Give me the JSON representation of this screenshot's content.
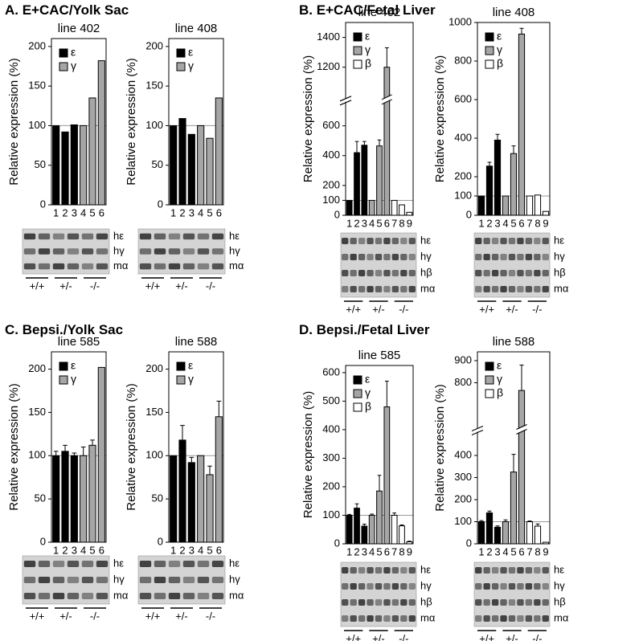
{
  "panels": [
    {
      "label": "A. E+CAC/Yolk Sac"
    },
    {
      "label": "B. E+CAC/Fetal Liver"
    },
    {
      "label": "C. Bepsi./Yolk Sac"
    },
    {
      "label": "D. Bepsi./Fetal Liver"
    }
  ],
  "chart_data": [
    {
      "type": "bar",
      "title": "line 402",
      "y_label": "Relative expression (%)",
      "categories": [
        "1",
        "2",
        "3",
        "4",
        "5",
        "6"
      ],
      "series": [
        {
          "name": "ε",
          "color": "#000000",
          "values": [
            100,
            92,
            101,
            null,
            null,
            null
          ]
        },
        {
          "name": "γ",
          "color": "#a6a6a6",
          "values": [
            null,
            null,
            null,
            100,
            135,
            182
          ]
        }
      ],
      "ylim": [
        0,
        210
      ],
      "yticks": [
        0,
        50,
        100,
        150,
        200
      ],
      "hline": 100,
      "legend": "upper left",
      "gel_labels": [
        "hε",
        "hγ",
        "mα"
      ],
      "genotype_labels": [
        "+/+",
        "+/-",
        "-/-"
      ]
    },
    {
      "type": "bar",
      "title": "line 408",
      "y_label": "Relative expression (%)",
      "categories": [
        "1",
        "2",
        "3",
        "4",
        "5",
        "6"
      ],
      "series": [
        {
          "name": "ε",
          "color": "#000000",
          "values": [
            100,
            109,
            89,
            null,
            null,
            null
          ]
        },
        {
          "name": "γ",
          "color": "#a6a6a6",
          "values": [
            null,
            null,
            null,
            100,
            84,
            135
          ]
        }
      ],
      "ylim": [
        0,
        210
      ],
      "yticks": [
        0,
        50,
        100,
        150,
        200
      ],
      "hline": 100,
      "legend": "upper left",
      "gel_labels": [
        "hε",
        "hγ",
        "mα"
      ],
      "genotype_labels": [
        "+/+",
        "+/-",
        "-/-"
      ]
    },
    {
      "type": "bar",
      "title": "line 402",
      "y_label": "Relative expression (%)",
      "categories": [
        "1",
        "2",
        "3",
        "4",
        "5",
        "6",
        "7",
        "8",
        "9"
      ],
      "series": [
        {
          "name": "ε",
          "color": "#000000",
          "values": [
            100,
            420,
            470,
            null,
            null,
            null,
            null,
            null,
            null
          ],
          "errors": [
            null,
            75,
            25,
            null,
            null,
            null,
            null,
            null,
            null
          ]
        },
        {
          "name": "γ",
          "color": "#a6a6a6",
          "values": [
            null,
            null,
            null,
            100,
            465,
            1200,
            null,
            null,
            null
          ],
          "errors": [
            null,
            null,
            null,
            null,
            40,
            130,
            null,
            null,
            null
          ]
        },
        {
          "name": "β",
          "color": "#ffffff",
          "values": [
            null,
            null,
            null,
            null,
            null,
            null,
            100,
            70,
            20
          ]
        }
      ],
      "ylim": [
        0,
        1500
      ],
      "y_break": [
        750,
        1000
      ],
      "yticks": [
        0,
        100,
        200,
        400,
        600,
        1200,
        1400
      ],
      "hline": 100,
      "legend": "upper left",
      "gel_labels": [
        "hε",
        "hγ",
        "hβ",
        "mα"
      ],
      "genotype_labels": [
        "+/+",
        "+/-",
        "-/-"
      ]
    },
    {
      "type": "bar",
      "title": "line 408",
      "y_label": "Relative expression (%)",
      "categories": [
        "1",
        "2",
        "3",
        "4",
        "5",
        "6",
        "7",
        "8",
        "9"
      ],
      "series": [
        {
          "name": "ε",
          "color": "#000000",
          "values": [
            100,
            255,
            390,
            null,
            null,
            null,
            null,
            null,
            null
          ],
          "errors": [
            null,
            20,
            30,
            null,
            null,
            null,
            null,
            null,
            null
          ]
        },
        {
          "name": "γ",
          "color": "#a6a6a6",
          "values": [
            null,
            null,
            null,
            100,
            320,
            940,
            null,
            null,
            null
          ],
          "errors": [
            null,
            null,
            null,
            null,
            40,
            30,
            null,
            null,
            null
          ]
        },
        {
          "name": "β",
          "color": "#ffffff",
          "values": [
            null,
            null,
            null,
            null,
            null,
            null,
            100,
            105,
            20
          ]
        }
      ],
      "ylim": [
        0,
        1000
      ],
      "yticks": [
        0,
        100,
        200,
        400,
        600,
        800,
        1000
      ],
      "hline": 100,
      "legend": "upper left",
      "gel_labels": [
        "hε",
        "hγ",
        "hβ",
        "mα"
      ],
      "genotype_labels": [
        "+/+",
        "+/-",
        "-/-"
      ]
    },
    {
      "type": "bar",
      "title": "line 585",
      "y_label": "Relative expression (%)",
      "categories": [
        "1",
        "2",
        "3",
        "4",
        "5",
        "6"
      ],
      "series": [
        {
          "name": "ε",
          "color": "#000000",
          "values": [
            100,
            105,
            100,
            null,
            null,
            null
          ],
          "errors": [
            5,
            7,
            3,
            null,
            null,
            null
          ]
        },
        {
          "name": "γ",
          "color": "#a6a6a6",
          "values": [
            null,
            null,
            null,
            100,
            112,
            202
          ],
          "errors": [
            null,
            null,
            null,
            10,
            6,
            null
          ]
        }
      ],
      "ylim": [
        0,
        220
      ],
      "yticks": [
        0,
        50,
        100,
        150,
        200
      ],
      "hline": 100,
      "legend": "upper left",
      "gel_labels": [
        "hε",
        "hγ",
        "mα"
      ],
      "genotype_labels": [
        "+/+",
        "+/-",
        "-/-"
      ]
    },
    {
      "type": "bar",
      "title": "line 588",
      "y_label": "Relative expression (%)",
      "categories": [
        "1",
        "2",
        "3",
        "4",
        "5",
        "6"
      ],
      "series": [
        {
          "name": "ε",
          "color": "#000000",
          "values": [
            100,
            118,
            92,
            null,
            null,
            null
          ],
          "errors": [
            null,
            17,
            6,
            null,
            null,
            null
          ]
        },
        {
          "name": "γ",
          "color": "#a6a6a6",
          "values": [
            null,
            null,
            null,
            100,
            78,
            145
          ],
          "errors": [
            null,
            null,
            null,
            null,
            10,
            18
          ]
        }
      ],
      "ylim": [
        0,
        220
      ],
      "yticks": [
        0,
        50,
        100,
        150,
        200
      ],
      "hline": 100,
      "legend": "upper left",
      "gel_labels": [
        "hε",
        "hγ",
        "mα"
      ],
      "genotype_labels": [
        "+/+",
        "+/-",
        "-/-"
      ]
    },
    {
      "type": "bar",
      "title": "line 585",
      "y_label": "Relative expression (%)",
      "categories": [
        "1",
        "2",
        "3",
        "4",
        "5",
        "6",
        "7",
        "8",
        "9"
      ],
      "series": [
        {
          "name": "ε",
          "color": "#000000",
          "values": [
            100,
            125,
            62,
            null,
            null,
            null,
            null,
            null,
            null
          ],
          "errors": [
            3,
            15,
            7,
            null,
            null,
            null,
            null,
            null,
            null
          ]
        },
        {
          "name": "γ",
          "color": "#a6a6a6",
          "values": [
            null,
            null,
            null,
            100,
            185,
            480,
            null,
            null,
            null
          ],
          "errors": [
            null,
            null,
            null,
            4,
            55,
            90,
            null,
            null,
            null
          ]
        },
        {
          "name": "β",
          "color": "#ffffff",
          "values": [
            null,
            null,
            null,
            null,
            null,
            null,
            100,
            63,
            7
          ],
          "errors": [
            null,
            null,
            null,
            null,
            null,
            null,
            8,
            3,
            2
          ]
        }
      ],
      "ylim": [
        0,
        625
      ],
      "yticks": [
        0,
        100,
        200,
        300,
        400,
        500,
        600
      ],
      "hline": 100,
      "legend": "upper left",
      "gel_labels": [
        "hε",
        "hγ",
        "hβ",
        "mα"
      ],
      "genotype_labels": [
        "+/+",
        "+/-",
        "-/-"
      ]
    },
    {
      "type": "bar",
      "title": "line 588",
      "y_label": "Relative expression (%)",
      "categories": [
        "1",
        "2",
        "3",
        "4",
        "5",
        "6",
        "7",
        "8",
        "9"
      ],
      "series": [
        {
          "name": "ε",
          "color": "#000000",
          "values": [
            100,
            140,
            75,
            null,
            null,
            null,
            null,
            null,
            null
          ],
          "errors": [
            5,
            8,
            6,
            null,
            null,
            null,
            null,
            null,
            null
          ]
        },
        {
          "name": "γ",
          "color": "#a6a6a6",
          "values": [
            null,
            null,
            null,
            100,
            325,
            765,
            null,
            null,
            null
          ],
          "errors": [
            null,
            null,
            null,
            8,
            80,
            115,
            null,
            null,
            null
          ]
        },
        {
          "name": "β",
          "color": "#ffffff",
          "values": [
            null,
            null,
            null,
            null,
            null,
            null,
            100,
            80,
            7
          ],
          "errors": [
            null,
            null,
            null,
            null,
            null,
            null,
            3,
            10,
            null
          ]
        }
      ],
      "ylim": [
        0,
        940
      ],
      "y_break": [
        500,
        600
      ],
      "yticks": [
        0,
        100,
        200,
        300,
        400,
        800,
        900
      ],
      "hline": 100,
      "legend": "upper left",
      "gel_labels": [
        "hε",
        "hγ",
        "hβ",
        "mα"
      ],
      "genotype_labels": [
        "+/+",
        "+/-",
        "-/-"
      ]
    }
  ]
}
